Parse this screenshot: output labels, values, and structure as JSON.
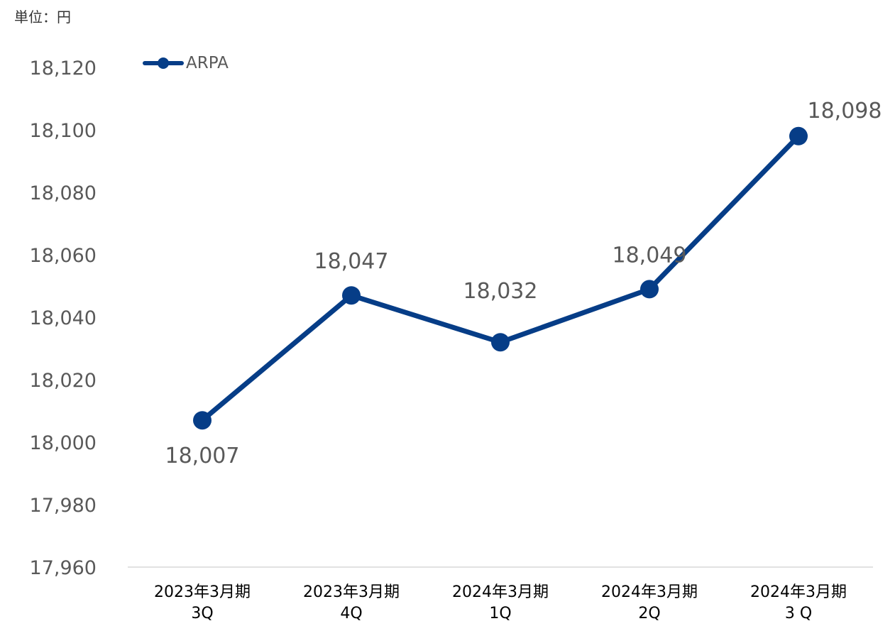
{
  "unit_label": "単位：円",
  "colors": {
    "series": "#063D87",
    "axis": "#D9D9D9"
  },
  "chart_data": {
    "type": "line",
    "categories": [
      [
        "2023年3月期",
        "3Q"
      ],
      [
        "2023年3月期",
        "4Q"
      ],
      [
        "2024年3月期",
        "1Q"
      ],
      [
        "2024年3月期",
        "2Q"
      ],
      [
        "2024年3月期",
        "3 Q"
      ]
    ],
    "series": [
      {
        "name": "ARPA",
        "values": [
          18007,
          18047,
          18032,
          18049,
          18098
        ]
      }
    ],
    "data_labels": [
      "18,007",
      "18,047",
      "18,032",
      "18,049",
      "18,098"
    ],
    "yticks": [
      "17,960",
      "17,980",
      "18,000",
      "18,020",
      "18,040",
      "18,060",
      "18,080",
      "18,100",
      "18,120"
    ],
    "ylim": [
      17960,
      18120
    ],
    "grid": false,
    "legend": "top-left"
  }
}
